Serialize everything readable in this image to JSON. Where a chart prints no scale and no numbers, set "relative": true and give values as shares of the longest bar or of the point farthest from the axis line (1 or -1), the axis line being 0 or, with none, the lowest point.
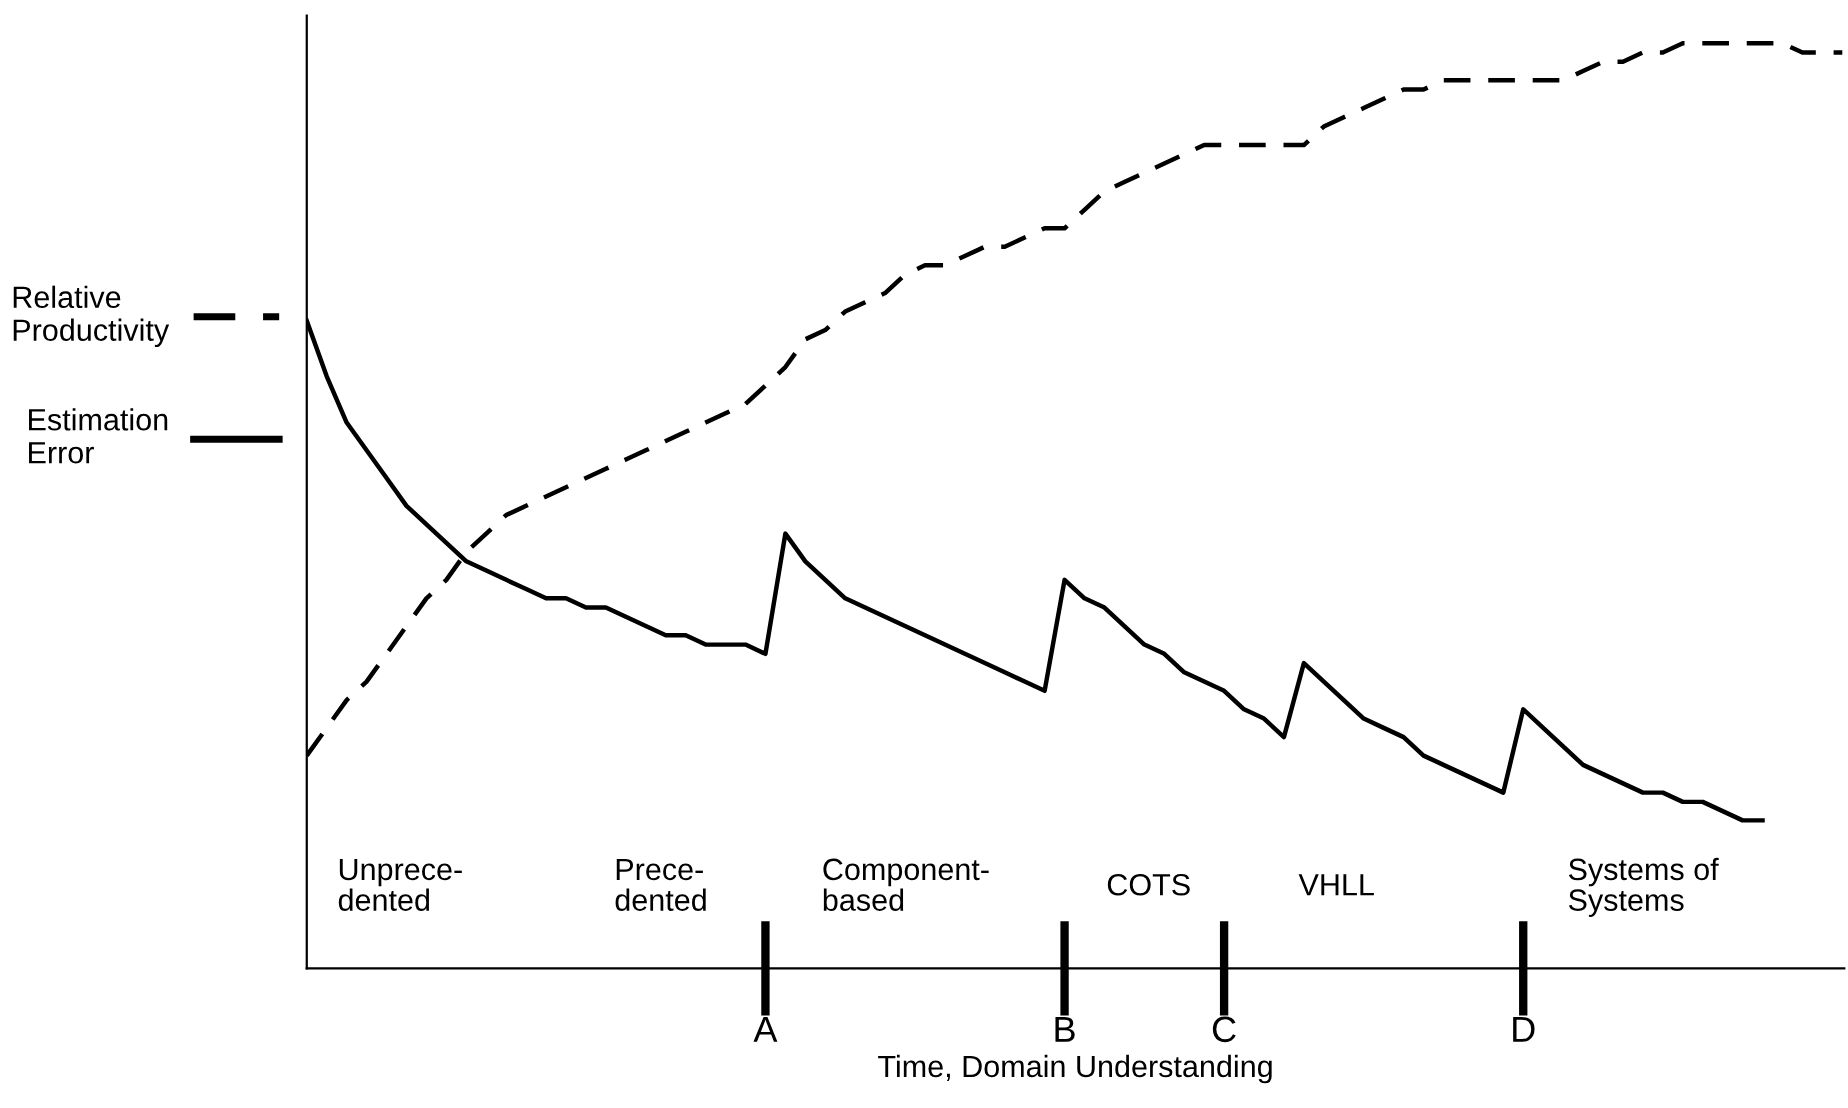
{
  "chart_data": {
    "type": "line",
    "relative": true,
    "xlabel": "Time, Domain Understanding",
    "legend": "left",
    "grid": false,
    "marker": "none",
    "categories": [
      null,
      null,
      null,
      null,
      null,
      null,
      null,
      null,
      null,
      null,
      null,
      null,
      null,
      null,
      null,
      null,
      null,
      null,
      null,
      null,
      null,
      null,
      null,
      "A",
      null,
      null,
      null,
      null,
      null,
      null,
      null,
      null,
      null,
      null,
      null,
      null,
      null,
      null,
      "B",
      null,
      null,
      null,
      null,
      null,
      null,
      null,
      "C",
      null,
      null,
      null,
      null,
      null,
      null,
      null,
      null,
      null,
      null,
      null,
      null,
      null,
      null,
      "D",
      null,
      null,
      null,
      null,
      null,
      null,
      null,
      null,
      null,
      null,
      null,
      null,
      null,
      null,
      null,
      null
    ],
    "series": [
      {
        "name": "Relative Productivity",
        "color": "#000000",
        "line_style": "dashed",
        "values": [
          0.23,
          0.26,
          0.29,
          0.31,
          0.34,
          0.37,
          0.4,
          0.42,
          0.45,
          0.47,
          0.49,
          0.5,
          0.51,
          0.52,
          0.53,
          0.54,
          0.55,
          0.56,
          0.57,
          0.58,
          0.59,
          0.6,
          0.61,
          0.63,
          0.65,
          0.68,
          0.69,
          0.71,
          0.72,
          0.73,
          0.75,
          0.76,
          0.76,
          0.77,
          0.78,
          0.78,
          0.79,
          0.8,
          0.8,
          0.82,
          0.84,
          0.85,
          0.86,
          0.87,
          0.88,
          0.89,
          0.89,
          0.89,
          0.89,
          0.89,
          0.89,
          0.91,
          0.92,
          0.93,
          0.94,
          0.95,
          0.95,
          0.96,
          0.96,
          0.96,
          0.96,
          0.96,
          0.96,
          0.96,
          0.97,
          0.98,
          0.98,
          0.99,
          0.99,
          1.0,
          1.0,
          1.0,
          1.0,
          1.0,
          1.0,
          0.99,
          0.99,
          0.99
        ]
      },
      {
        "name": "Estimation Error",
        "color": "#000000",
        "line_style": "solid",
        "values": [
          0.7,
          0.64,
          0.59,
          0.56,
          0.53,
          0.5,
          0.48,
          0.46,
          0.44,
          0.43,
          0.42,
          0.41,
          0.4,
          0.4,
          0.39,
          0.39,
          0.38,
          0.37,
          0.36,
          0.36,
          0.35,
          0.35,
          0.35,
          0.34,
          0.47,
          0.44,
          0.42,
          0.4,
          0.39,
          0.38,
          0.37,
          0.36,
          0.35,
          0.34,
          0.33,
          0.32,
          0.31,
          0.3,
          0.42,
          0.4,
          0.39,
          0.37,
          0.35,
          0.34,
          0.32,
          0.31,
          0.3,
          0.28,
          0.27,
          0.25,
          0.33,
          0.31,
          0.29,
          0.27,
          0.26,
          0.25,
          0.23,
          0.22,
          0.21,
          0.2,
          0.19,
          0.28,
          0.26,
          0.24,
          0.22,
          0.21,
          0.2,
          0.19,
          0.19,
          0.18,
          0.18,
          0.17,
          0.16,
          0.16,
          null,
          null,
          null,
          null
        ]
      }
    ],
    "annotations": [
      "Unprece-\ndented",
      "Prece-\ndented",
      "Component-\nbased",
      "COTS",
      "VHLL",
      "Systems of\nSystems"
    ]
  }
}
